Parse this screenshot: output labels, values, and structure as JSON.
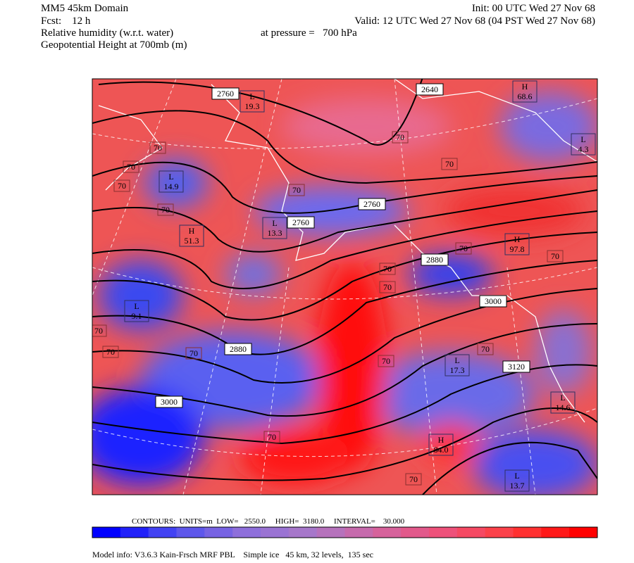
{
  "header": {
    "model": "MM5 45km Domain",
    "init": "Init: 00 UTC Wed 27 Nov 68",
    "fcst": "Fcst:    12 h",
    "valid": "Valid: 12 UTC Wed 27 Nov 68 (04 PST Wed 27 Nov 68)",
    "field1": "Relative humidity (w.r.t. water)",
    "pressure": "at pressure =   700 hPa",
    "field2": "Geopotential Height at 700mb (m)"
  },
  "map": {
    "height_labels": [
      "2760",
      "2640",
      "2760",
      "2760",
      "2880",
      "3000",
      "2880",
      "3120",
      "3000"
    ],
    "rh_labels": [
      "70",
      "70",
      "70",
      "70",
      "70",
      "70",
      "70",
      "70",
      "70",
      "70",
      "70",
      "70",
      "70",
      "70",
      "70",
      "70",
      "70",
      "70"
    ],
    "extrema": [
      {
        "kind": "L",
        "value": "19.3"
      },
      {
        "kind": "H",
        "value": "68.6"
      },
      {
        "kind": "L",
        "value": "4.3"
      },
      {
        "kind": "L",
        "value": "14.9"
      },
      {
        "kind": "H",
        "value": "51.3"
      },
      {
        "kind": "L",
        "value": "13.3"
      },
      {
        "kind": "H",
        "value": "97.8"
      },
      {
        "kind": "L",
        "value": "9.1"
      },
      {
        "kind": "L",
        "value": "17.3"
      },
      {
        "kind": "L",
        "value": "14.6"
      },
      {
        "kind": "H",
        "value": "84.0"
      },
      {
        "kind": "L",
        "value": "13.7"
      }
    ]
  },
  "legend": {
    "contours": "CONTOURS:  UNITS=m  LOW=   2550.0     HIGH=  3180.0     INTERVAL=    30.000"
  },
  "footer": {
    "model_info": "Model info: V3.6.3 Kain-Frsch MRF PBL    Simple ice   45 km, 32 levels,  135 sec"
  }
}
